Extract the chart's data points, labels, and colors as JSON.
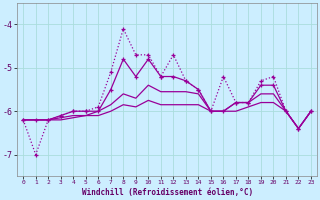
{
  "xlabel": "Windchill (Refroidissement éolien,°C)",
  "background_color": "#cceeff",
  "grid_color": "#aadddd",
  "line_color": "#990099",
  "xlim": [
    -0.5,
    23.5
  ],
  "ylim": [
    -7.5,
    -3.5
  ],
  "yticks": [
    -7,
    -6,
    -5,
    -4
  ],
  "xticks": [
    0,
    1,
    2,
    3,
    4,
    5,
    6,
    7,
    8,
    9,
    10,
    11,
    12,
    13,
    14,
    15,
    16,
    17,
    18,
    19,
    20,
    21,
    22,
    23
  ],
  "series": [
    {
      "x": [
        0,
        1,
        2,
        3,
        4,
        5,
        6,
        7,
        8,
        9,
        10,
        11,
        12,
        13,
        14,
        15,
        16,
        17,
        18,
        19,
        20,
        21,
        22,
        23
      ],
      "y": [
        -6.2,
        -7.0,
        -6.2,
        -6.1,
        -6.0,
        -6.0,
        -5.9,
        -5.1,
        -4.1,
        -4.7,
        -4.7,
        -5.2,
        -4.7,
        -5.3,
        -5.5,
        -6.0,
        -5.2,
        -5.8,
        -5.8,
        -5.3,
        -5.2,
        -6.0,
        -6.4,
        -6.0
      ],
      "linestyle": "dotted",
      "marker": true,
      "linewidth": 0.9
    },
    {
      "x": [
        0,
        1,
        2,
        3,
        4,
        5,
        6,
        7,
        8,
        9,
        10,
        11,
        12,
        13,
        14,
        15,
        16,
        17,
        18,
        19,
        20,
        21,
        22,
        23
      ],
      "y": [
        -6.2,
        -6.2,
        -6.2,
        -6.1,
        -6.0,
        -6.0,
        -6.0,
        -5.5,
        -4.8,
        -5.2,
        -4.8,
        -5.2,
        -5.2,
        -5.3,
        -5.5,
        -6.0,
        -6.0,
        -5.8,
        -5.8,
        -5.4,
        -5.4,
        -6.0,
        -6.4,
        -6.0
      ],
      "linestyle": "solid",
      "marker": true,
      "linewidth": 0.9
    },
    {
      "x": [
        0,
        1,
        2,
        3,
        4,
        5,
        6,
        7,
        8,
        9,
        10,
        11,
        12,
        13,
        14,
        15,
        16,
        17,
        18,
        19,
        20,
        21,
        22,
        23
      ],
      "y": [
        -6.2,
        -6.2,
        -6.2,
        -6.15,
        -6.1,
        -6.1,
        -6.0,
        -5.85,
        -5.6,
        -5.7,
        -5.4,
        -5.55,
        -5.55,
        -5.55,
        -5.6,
        -6.0,
        -6.0,
        -5.8,
        -5.8,
        -5.6,
        -5.6,
        -6.0,
        -6.4,
        -6.0
      ],
      "linestyle": "solid",
      "marker": false,
      "linewidth": 0.9
    },
    {
      "x": [
        0,
        1,
        2,
        3,
        4,
        5,
        6,
        7,
        8,
        9,
        10,
        11,
        12,
        13,
        14,
        15,
        16,
        17,
        18,
        19,
        20,
        21,
        22,
        23
      ],
      "y": [
        -6.2,
        -6.2,
        -6.2,
        -6.2,
        -6.15,
        -6.1,
        -6.1,
        -6.0,
        -5.85,
        -5.9,
        -5.75,
        -5.85,
        -5.85,
        -5.85,
        -5.85,
        -6.0,
        -6.0,
        -6.0,
        -5.9,
        -5.8,
        -5.8,
        -6.0,
        -6.4,
        -6.0
      ],
      "linestyle": "solid",
      "marker": false,
      "linewidth": 0.9
    }
  ]
}
